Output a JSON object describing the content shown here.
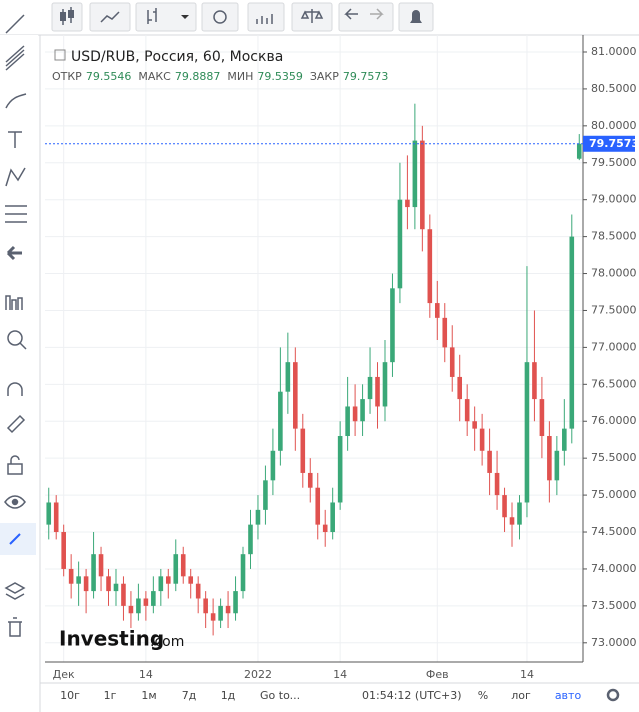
{
  "chart_data": {
    "type": "candlestick",
    "title": "USD/RUB, Россия, 60, Москва",
    "ohlc_labels": [
      "ОТКР",
      "МАКС",
      "МИН",
      "ЗАКР"
    ],
    "up_color": "#3aa878",
    "down_color": "#e0524f",
    "categories": [
      null,
      null,
      "Дек",
      null,
      null,
      null,
      null,
      null,
      null,
      null,
      null,
      null,
      null,
      "14",
      null,
      null,
      null,
      null,
      null,
      null,
      null,
      null,
      null,
      null,
      null,
      null,
      null,
      null,
      "2022",
      null,
      null,
      null,
      null,
      null,
      null,
      null,
      null,
      null,
      null,
      "14",
      null,
      null,
      null,
      null,
      null,
      null,
      null,
      null,
      null,
      null,
      null,
      null,
      "Фев",
      null,
      null,
      null,
      null,
      null,
      null,
      null,
      null,
      null,
      null,
      null,
      "14",
      null,
      null,
      null,
      null,
      null,
      null,
      null
    ],
    "open": [
      74.6,
      74.9,
      74.5,
      74.0,
      73.8,
      73.9,
      73.7,
      74.2,
      73.9,
      73.7,
      73.8,
      73.5,
      73.4,
      73.6,
      73.5,
      73.7,
      73.9,
      73.8,
      74.2,
      73.9,
      73.8,
      73.6,
      73.4,
      73.3,
      73.5,
      73.4,
      73.7,
      74.2,
      74.6,
      74.8,
      75.2,
      75.6,
      76.4,
      76.8,
      75.9,
      75.3,
      75.1,
      74.6,
      74.5,
      74.9,
      75.8,
      76.2,
      76.0,
      76.3,
      76.6,
      76.2,
      76.8,
      77.8,
      79.0,
      78.9,
      79.8,
      78.6,
      77.6,
      77.4,
      77.0,
      76.6,
      76.3,
      76.0,
      75.9,
      75.6,
      75.3,
      75.0,
      74.7,
      74.6,
      74.9,
      76.8,
      76.3,
      75.8,
      75.2,
      75.6,
      75.9,
      79.5546
    ],
    "high": [
      75.1,
      75.0,
      74.6,
      74.2,
      74.1,
      74.0,
      74.5,
      74.3,
      74.0,
      74.0,
      73.9,
      73.7,
      73.8,
      73.7,
      73.9,
      74.0,
      74.0,
      74.4,
      74.3,
      74.0,
      73.9,
      73.7,
      73.6,
      73.6,
      73.7,
      73.9,
      74.3,
      74.8,
      75.0,
      75.4,
      75.9,
      77.0,
      77.2,
      77.0,
      76.1,
      75.5,
      75.3,
      74.8,
      75.1,
      76.0,
      76.6,
      76.5,
      76.5,
      77.0,
      76.8,
      77.1,
      78.0,
      79.5,
      79.6,
      80.3,
      80.0,
      78.8,
      77.9,
      77.6,
      77.3,
      76.9,
      76.5,
      76.2,
      76.1,
      75.9,
      75.6,
      75.1,
      74.9,
      75.0,
      78.1,
      77.5,
      76.6,
      76.0,
      75.8,
      76.3,
      78.8,
      79.8887
    ],
    "low": [
      74.4,
      74.4,
      73.9,
      73.6,
      73.5,
      73.4,
      73.6,
      73.7,
      73.5,
      73.5,
      73.3,
      73.2,
      73.3,
      73.3,
      73.4,
      73.5,
      73.6,
      73.7,
      73.8,
      73.6,
      73.4,
      73.2,
      73.1,
      73.2,
      73.2,
      73.3,
      73.6,
      74.0,
      74.4,
      74.6,
      75.0,
      75.4,
      76.1,
      75.6,
      75.1,
      74.9,
      74.4,
      74.3,
      74.4,
      74.8,
      75.6,
      75.8,
      75.8,
      76.1,
      75.9,
      76.0,
      76.6,
      77.6,
      78.6,
      78.6,
      78.3,
      77.4,
      77.1,
      76.8,
      76.4,
      76.0,
      75.8,
      75.6,
      75.4,
      75.0,
      74.8,
      74.5,
      74.3,
      74.4,
      74.7,
      76.0,
      75.5,
      74.9,
      75.0,
      75.4,
      75.7,
      79.5359
    ],
    "close": [
      74.9,
      74.5,
      74.0,
      73.8,
      73.9,
      73.7,
      74.2,
      73.9,
      73.7,
      73.8,
      73.5,
      73.4,
      73.6,
      73.5,
      73.7,
      73.9,
      73.8,
      74.2,
      73.9,
      73.8,
      73.6,
      73.4,
      73.3,
      73.5,
      73.4,
      73.7,
      74.2,
      74.6,
      74.8,
      75.2,
      75.6,
      76.4,
      76.8,
      75.9,
      75.3,
      75.1,
      74.6,
      74.5,
      74.9,
      75.8,
      76.2,
      76.0,
      76.3,
      76.6,
      76.2,
      76.8,
      77.8,
      79.0,
      78.9,
      79.8,
      78.6,
      77.6,
      77.4,
      77.0,
      76.6,
      76.3,
      76.0,
      75.9,
      75.6,
      75.3,
      75.0,
      74.7,
      74.6,
      74.9,
      76.8,
      76.3,
      75.8,
      75.2,
      75.6,
      75.9,
      78.5,
      79.7573
    ],
    "ylim": [
      72.74,
      81.23
    ],
    "yticks": [
      {
        "value": 73,
        "label": "73.0000"
      },
      {
        "value": 73.5,
        "label": "73.5000"
      },
      {
        "value": 74,
        "label": "74.0000"
      },
      {
        "value": 74.5,
        "label": "74.5000"
      },
      {
        "value": 75,
        "label": "75.0000"
      },
      {
        "value": 75.5,
        "label": "75.5000"
      },
      {
        "value": 76,
        "label": "76.0000"
      },
      {
        "value": 76.5,
        "label": "76.5000"
      },
      {
        "value": 77,
        "label": "77.0000"
      },
      {
        "value": 77.5,
        "label": "77.5000"
      },
      {
        "value": 78,
        "label": "78.0000"
      },
      {
        "value": 78.5,
        "label": "78.5000"
      },
      {
        "value": 79,
        "label": "79.0000"
      },
      {
        "value": 79.5,
        "label": "79.5000"
      },
      {
        "value": 80,
        "label": "80.0000"
      },
      {
        "value": 80.5,
        "label": "80.5000"
      },
      {
        "value": 81,
        "label": "81.0000"
      }
    ],
    "last_price_color": "#2962ff"
  },
  "logo": {
    "brand": "Investing",
    "suffix": ".com"
  },
  "bottom_bar": {
    "ranges": [
      "10г",
      "1г",
      "1м",
      "7д",
      "1д"
    ],
    "goto": "Go to...",
    "time": "01:54:12 (UTC+3)",
    "percent": "%",
    "log": "лог",
    "auto": "авто"
  }
}
